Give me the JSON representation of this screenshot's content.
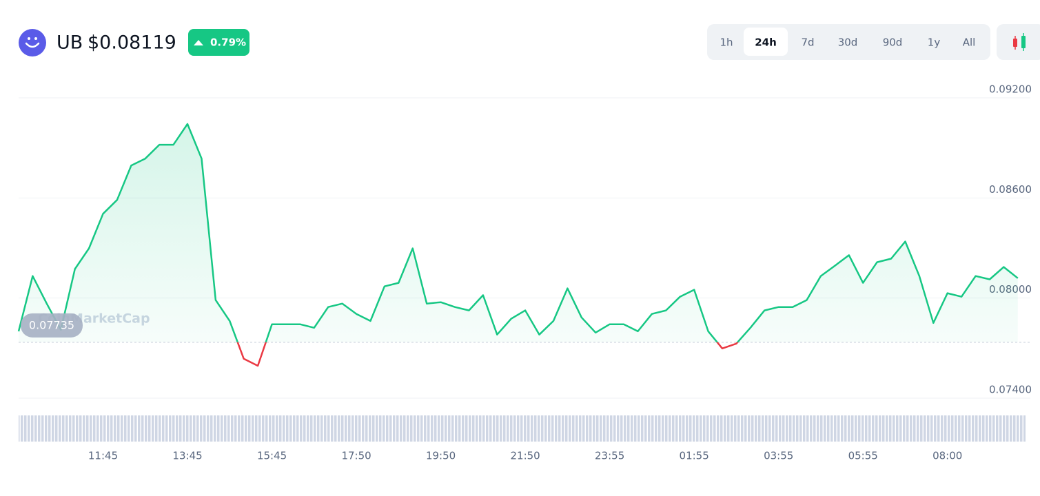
{
  "header": {
    "symbol": "UB",
    "price": "$0.08119",
    "change": "0.79%"
  },
  "range_buttons": [
    {
      "label": "1h",
      "active": false
    },
    {
      "label": "24h",
      "active": true
    },
    {
      "label": "7d",
      "active": false
    },
    {
      "label": "30d",
      "active": false
    },
    {
      "label": "90d",
      "active": false
    },
    {
      "label": "1y",
      "active": false
    },
    {
      "label": "All",
      "active": false
    }
  ],
  "chart_data": {
    "type": "line",
    "watermark": "CoinMarketCap",
    "categories": [
      null,
      null,
      null,
      null,
      null,
      null,
      "11:45",
      null,
      null,
      null,
      null,
      null,
      "13:45",
      null,
      null,
      null,
      null,
      null,
      "15:45",
      null,
      null,
      null,
      null,
      null,
      "17:50",
      null,
      null,
      null,
      null,
      null,
      "19:50",
      null,
      null,
      null,
      null,
      null,
      "21:50",
      null,
      null,
      null,
      null,
      null,
      "23:55",
      null,
      null,
      null,
      null,
      null,
      "01:55",
      null,
      null,
      null,
      null,
      null,
      "03:55",
      null,
      null,
      null,
      null,
      null,
      "05:55",
      null,
      null,
      null,
      null,
      null,
      "08:00",
      null,
      null,
      null,
      null,
      null
    ],
    "values": [
      0.07801,
      0.08132,
      0.07967,
      0.0781,
      0.08174,
      0.08298,
      0.08505,
      0.08588,
      0.08794,
      0.08836,
      0.08919,
      0.08919,
      0.09043,
      0.08836,
      0.07988,
      0.07863,
      0.07636,
      0.07594,
      0.07843,
      0.07843,
      0.07843,
      0.07822,
      0.07946,
      0.07967,
      0.07905,
      0.07863,
      0.0807,
      0.08091,
      0.08298,
      0.07967,
      0.07975,
      0.07946,
      0.07926,
      0.08017,
      0.07781,
      0.07876,
      0.07926,
      0.07781,
      0.07863,
      0.08058,
      0.07884,
      0.07793,
      0.07843,
      0.07843,
      0.07801,
      0.07905,
      0.07926,
      0.08008,
      0.0805,
      0.07801,
      0.07698,
      0.07727,
      0.07822,
      0.07926,
      0.07946,
      0.07946,
      0.07988,
      0.08132,
      0.08194,
      0.08257,
      0.08091,
      0.08215,
      0.08236,
      0.08339,
      0.08132,
      0.07851,
      0.08029,
      0.08008,
      0.08132,
      0.08112,
      0.08186,
      0.08119
    ],
    "up_color": "#16c784",
    "down_color": "#ea3943",
    "baseline": 0.07735,
    "ylim": [
      0.074,
      0.092
    ],
    "yticks": [
      {
        "value": 0.074,
        "label": "0.07400"
      },
      {
        "value": 0.08,
        "label": "0.08000"
      },
      {
        "value": 0.086,
        "label": "0.08600"
      },
      {
        "value": 0.092,
        "label": "0.09200"
      }
    ],
    "grid": true
  }
}
